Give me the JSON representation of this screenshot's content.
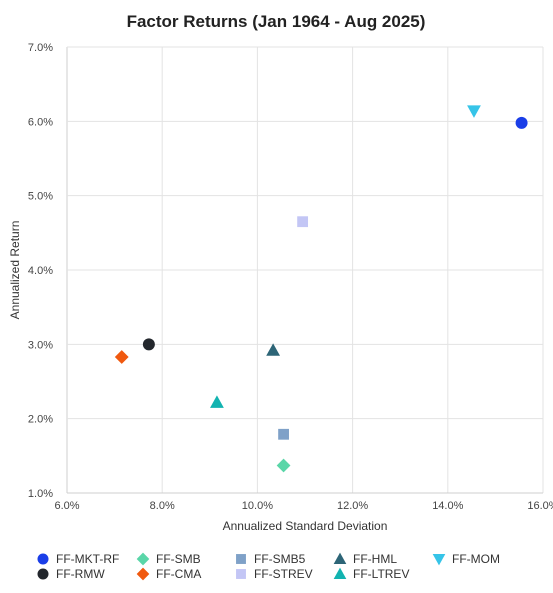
{
  "chart_data": {
    "type": "scatter",
    "title": "Factor Returns (Jan 1964 - Aug 2025)",
    "xlabel": "Annualized Standard Deviation",
    "ylabel": "Annualized Return",
    "xlim": [
      6.0,
      16.0
    ],
    "ylim": [
      1.0,
      7.0
    ],
    "x_ticks": [
      "6.0%",
      "8.0%",
      "10.0%",
      "12.0%",
      "14.0%",
      "16.0%"
    ],
    "y_ticks": [
      "1.0%",
      "2.0%",
      "3.0%",
      "4.0%",
      "5.0%",
      "6.0%",
      "7.0%"
    ],
    "grid": true,
    "legend_position": "bottom",
    "series": [
      {
        "name": "FF-MKT-RF",
        "marker": "circle",
        "color": "#1a3ee8",
        "x": 15.55,
        "y": 5.98
      },
      {
        "name": "FF-SMB",
        "marker": "diamond",
        "color": "#5ad6a8",
        "x": 10.55,
        "y": 1.37
      },
      {
        "name": "FF-SMB5",
        "marker": "square",
        "color": "#7fa1c8",
        "x": 10.55,
        "y": 1.79
      },
      {
        "name": "FF-HML",
        "marker": "triangle-up",
        "color": "#2d6577",
        "x": 10.33,
        "y": 2.92
      },
      {
        "name": "FF-MOM",
        "marker": "triangle-down",
        "color": "#36c4e8",
        "x": 14.55,
        "y": 6.14
      },
      {
        "name": "FF-RMW",
        "marker": "circle",
        "color": "#23272d",
        "x": 7.72,
        "y": 3.0
      },
      {
        "name": "FF-CMA",
        "marker": "diamond",
        "color": "#f0590f",
        "x": 7.15,
        "y": 2.83
      },
      {
        "name": "FF-STREV",
        "marker": "square",
        "color": "#c3c6f5",
        "x": 10.95,
        "y": 4.65
      },
      {
        "name": "FF-LTREV",
        "marker": "triangle-up",
        "color": "#12b3b0",
        "x": 9.15,
        "y": 2.22
      }
    ]
  }
}
